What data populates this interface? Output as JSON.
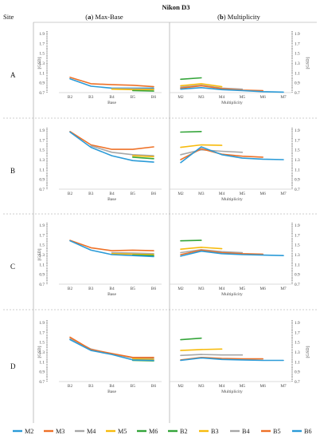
{
  "figure_title": "Nikon D3",
  "col_site": "Site",
  "col_a_letter": "a",
  "col_a_text": "Max-Base",
  "col_b_letter": "b",
  "col_b_text": "Multiplicity",
  "colors": {
    "M2": "#2b9bd8",
    "M3": "#ee7127",
    "M4": "#a7a7a7",
    "M5": "#f7bb0d",
    "M6": "#34a53a",
    "B2": "#34a53a",
    "B3": "#f7bb0d",
    "B4": "#a7a7a7",
    "B5": "#ee7127",
    "B6": "#2b9bd8"
  },
  "legend": [
    "M2",
    "M3",
    "M4",
    "M5",
    "M6",
    "B2",
    "B3",
    "B4",
    "B5",
    "B6"
  ],
  "chart_data": [
    {
      "type": "line",
      "site": "A",
      "panel": "a",
      "categories": [
        "B2",
        "B3",
        "B4",
        "B5",
        "B6"
      ],
      "xlabel": "Base",
      "ylabel": "[GSD]",
      "ylim": [
        0.7,
        1.9
      ],
      "yticks": [
        "1.9",
        "1.7",
        "1.5",
        "1.3",
        "1.1",
        "0.9",
        "0.7"
      ],
      "series": [
        {
          "name": "M3",
          "values": [
            1.01,
            0.88,
            0.86,
            0.85,
            0.82
          ]
        },
        {
          "name": "M2",
          "values": [
            0.98,
            0.83,
            0.79,
            0.79,
            0.79
          ]
        },
        {
          "name": "M4",
          "values": [
            null,
            null,
            0.78,
            0.78,
            0.77
          ]
        },
        {
          "name": "M5",
          "values": [
            null,
            null,
            0.77,
            0.76,
            0.76
          ]
        },
        {
          "name": "M6",
          "values": [
            null,
            null,
            null,
            0.74,
            0.73
          ]
        }
      ]
    },
    {
      "type": "line",
      "site": "A",
      "panel": "b",
      "categories": [
        "M2",
        "M3",
        "M4",
        "M5",
        "M6",
        "M7"
      ],
      "xlabel": "Multiplicity",
      "ylabel": "[GSD]",
      "ylim": [
        0.7,
        1.9
      ],
      "yticks": [
        "1.9",
        "1.7",
        "1.5",
        "1.3",
        "1.1",
        "0.9",
        "0.7"
      ],
      "series": [
        {
          "name": "B2",
          "values": [
            0.97,
            1.0,
            null,
            null,
            null,
            null
          ]
        },
        {
          "name": "B3",
          "values": [
            0.84,
            0.88,
            0.82,
            null,
            null,
            null
          ]
        },
        {
          "name": "B4",
          "values": [
            0.81,
            0.85,
            0.79,
            0.77,
            null,
            null
          ]
        },
        {
          "name": "B5",
          "values": [
            0.79,
            0.84,
            0.78,
            0.75,
            0.74,
            null
          ]
        },
        {
          "name": "B6",
          "values": [
            0.77,
            0.8,
            0.76,
            0.74,
            0.72,
            0.71
          ]
        }
      ]
    },
    {
      "type": "line",
      "site": "B",
      "panel": "a",
      "categories": [
        "B2",
        "B3",
        "B4",
        "B5",
        "B6"
      ],
      "xlabel": "Base",
      "ylabel": "",
      "ylim": [
        0.7,
        1.9
      ],
      "yticks": [
        "1.9",
        "1.7",
        "1.5",
        "1.3",
        "1.1",
        "0.9",
        "0.7"
      ],
      "series": [
        {
          "name": "M3",
          "values": [
            1.87,
            1.6,
            1.51,
            1.51,
            1.56
          ]
        },
        {
          "name": "M4",
          "values": [
            null,
            1.58,
            1.45,
            1.4,
            1.38
          ]
        },
        {
          "name": "M5",
          "values": [
            null,
            null,
            null,
            1.38,
            1.36
          ]
        },
        {
          "name": "M6",
          "values": [
            null,
            null,
            null,
            1.35,
            1.32
          ]
        },
        {
          "name": "M2",
          "values": [
            1.86,
            1.55,
            1.38,
            1.28,
            1.25
          ]
        }
      ]
    },
    {
      "type": "line",
      "site": "B",
      "panel": "b",
      "categories": [
        "M2",
        "M3",
        "M4",
        "M5",
        "M6",
        "M7"
      ],
      "xlabel": "Multiplicity",
      "ylabel": "",
      "ylim": [
        0.7,
        1.9
      ],
      "yticks": [
        "1.9",
        "1.7",
        "1.5",
        "1.3",
        "1.1",
        "0.9",
        "0.7"
      ],
      "series": [
        {
          "name": "B2",
          "values": [
            1.86,
            1.87,
            null,
            null,
            null,
            null
          ]
        },
        {
          "name": "B3",
          "values": [
            1.55,
            1.6,
            1.59,
            null,
            null,
            null
          ]
        },
        {
          "name": "B4",
          "values": [
            1.4,
            1.5,
            1.47,
            1.45,
            null,
            null
          ]
        },
        {
          "name": "B5",
          "values": [
            1.3,
            1.52,
            1.41,
            1.37,
            1.35,
            null
          ]
        },
        {
          "name": "B6",
          "values": [
            1.24,
            1.56,
            1.4,
            1.33,
            1.31,
            1.3
          ]
        }
      ]
    },
    {
      "type": "line",
      "site": "C",
      "panel": "a",
      "categories": [
        "B2",
        "B3",
        "B4",
        "B5",
        "B6"
      ],
      "xlabel": "Base",
      "ylabel": "[GSD]",
      "ylim": [
        0.7,
        1.9
      ],
      "yticks": [
        "1.9",
        "1.7",
        "1.5",
        "1.3",
        "1.1",
        "0.9",
        "0.7"
      ],
      "series": [
        {
          "name": "M3",
          "values": [
            1.59,
            1.44,
            1.38,
            1.39,
            1.38
          ]
        },
        {
          "name": "M4",
          "values": [
            null,
            null,
            1.34,
            1.33,
            1.32
          ]
        },
        {
          "name": "M5",
          "values": [
            null,
            null,
            1.32,
            1.31,
            1.3
          ]
        },
        {
          "name": "M6",
          "values": [
            null,
            null,
            null,
            1.29,
            1.28
          ]
        },
        {
          "name": "M2",
          "values": [
            1.58,
            1.39,
            1.3,
            1.28,
            1.26
          ]
        }
      ]
    },
    {
      "type": "line",
      "site": "C",
      "panel": "b",
      "categories": [
        "M2",
        "M3",
        "M4",
        "M5",
        "M6",
        "M7"
      ],
      "xlabel": "Multiplicity",
      "ylabel": "",
      "ylim": [
        0.7,
        1.9
      ],
      "yticks": [
        "1.9",
        "1.7",
        "1.5",
        "1.3",
        "1.1",
        "0.9",
        "0.7"
      ],
      "series": [
        {
          "name": "B2",
          "values": [
            1.58,
            1.59,
            null,
            null,
            null,
            null
          ]
        },
        {
          "name": "B3",
          "values": [
            1.41,
            1.45,
            1.42,
            null,
            null,
            null
          ]
        },
        {
          "name": "B4",
          "values": [
            1.34,
            1.4,
            1.36,
            1.34,
            null,
            null
          ]
        },
        {
          "name": "B5",
          "values": [
            1.3,
            1.39,
            1.34,
            1.32,
            1.31,
            null
          ]
        },
        {
          "name": "B6",
          "values": [
            1.27,
            1.37,
            1.32,
            1.3,
            1.29,
            1.28
          ]
        }
      ]
    },
    {
      "type": "line",
      "site": "D",
      "panel": "a",
      "categories": [
        "B2",
        "B3",
        "B4",
        "B5",
        "B6"
      ],
      "xlabel": "Base",
      "ylabel": "[GSD]",
      "ylim": [
        0.7,
        1.9
      ],
      "yticks": [
        "1.9",
        "1.7",
        "1.5",
        "1.3",
        "1.1",
        "0.9",
        "0.7"
      ],
      "series": [
        {
          "name": "M4",
          "values": [
            1.57,
            1.36,
            1.26,
            1.18,
            1.17
          ]
        },
        {
          "name": "M3",
          "values": [
            1.6,
            1.35,
            1.27,
            1.19,
            1.19
          ]
        },
        {
          "name": "M5",
          "values": [
            null,
            null,
            null,
            1.16,
            1.15
          ]
        },
        {
          "name": "M6",
          "values": [
            null,
            null,
            null,
            1.13,
            1.12
          ]
        },
        {
          "name": "M2",
          "values": [
            1.55,
            1.33,
            1.25,
            1.14,
            1.13
          ]
        }
      ]
    },
    {
      "type": "line",
      "site": "D",
      "panel": "b",
      "categories": [
        "M2",
        "M3",
        "M4",
        "M5",
        "M6",
        "M7"
      ],
      "xlabel": "Multiplicity",
      "ylabel": "[GSD]",
      "ylim": [
        0.7,
        1.9
      ],
      "yticks": [
        "1.9",
        "1.7",
        "1.5",
        "1.3",
        "1.1",
        "0.9",
        "0.7"
      ],
      "series": [
        {
          "name": "B2",
          "values": [
            1.55,
            1.58,
            null,
            null,
            null,
            null
          ]
        },
        {
          "name": "B3",
          "values": [
            1.33,
            1.35,
            1.36,
            null,
            null,
            null
          ]
        },
        {
          "name": "B4",
          "values": [
            1.23,
            1.25,
            1.24,
            1.24,
            null,
            null
          ]
        },
        {
          "name": "B5",
          "values": [
            1.14,
            1.19,
            1.17,
            1.16,
            1.16,
            null
          ]
        },
        {
          "name": "B6",
          "values": [
            1.13,
            1.18,
            1.15,
            1.14,
            1.13,
            1.13
          ]
        }
      ]
    }
  ]
}
